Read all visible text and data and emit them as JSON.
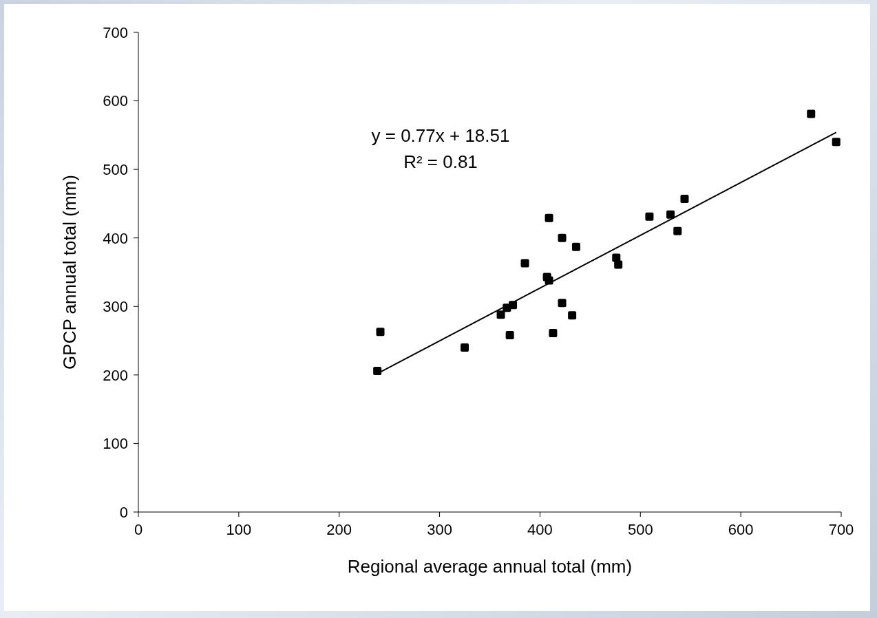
{
  "chart_data": {
    "type": "scatter",
    "xlabel": "Regional average annual total (mm)",
    "ylabel": "GPCP annual total (mm)",
    "annotations": [
      "y = 0.77x + 18.51",
      "R² = 0.81"
    ],
    "xlim": [
      0,
      700
    ],
    "xticks": [
      0,
      100,
      200,
      300,
      400,
      500,
      600,
      700
    ],
    "ylim": [
      0,
      700
    ],
    "yticks": [
      0,
      100,
      200,
      300,
      400,
      500,
      600,
      700
    ],
    "marker": "square",
    "series": [
      {
        "color": "#000000",
        "x": [
          238,
          241,
          325,
          361,
          367,
          373,
          370,
          385,
          407,
          409,
          409,
          422,
          436,
          422,
          432,
          413,
          476,
          478,
          509,
          530,
          537,
          544,
          670,
          695
        ],
        "values": [
          206,
          263,
          240,
          288,
          298,
          302,
          258,
          363,
          343,
          338,
          429,
          400,
          387,
          305,
          287,
          261,
          371,
          361,
          431,
          434,
          410,
          457,
          581,
          540
        ]
      },
      {
        "type": "line",
        "color": "#000000",
        "x": [
          238,
          695
        ],
        "values": [
          202,
          554
        ],
        "marker": "none",
        "line_style": "solid"
      }
    ]
  }
}
